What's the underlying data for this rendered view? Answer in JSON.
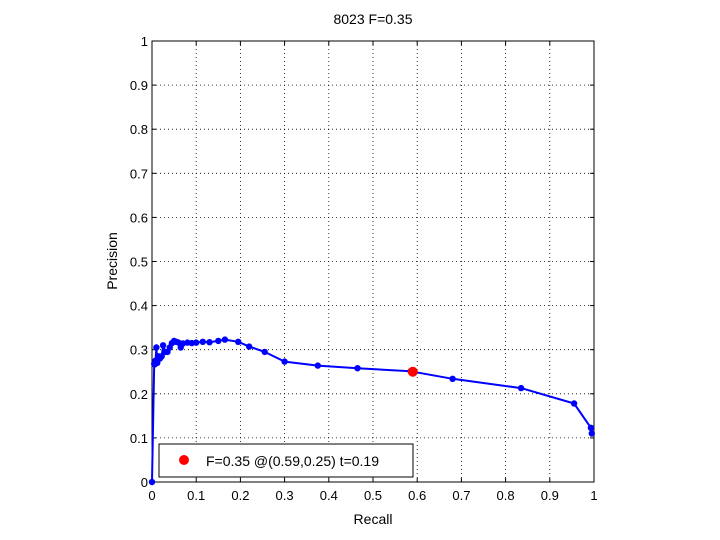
{
  "chart_data": {
    "type": "line",
    "title": "8023 F=0.35",
    "xlabel": "Recall",
    "ylabel": "Precision",
    "xlim": [
      0,
      1
    ],
    "ylim": [
      0,
      1
    ],
    "grid": true,
    "x_ticks": [
      0,
      0.1,
      0.2,
      0.3,
      0.4,
      0.5,
      0.6,
      0.7,
      0.8,
      0.9,
      1
    ],
    "y_ticks": [
      0,
      0.1,
      0.2,
      0.3,
      0.4,
      0.5,
      0.6,
      0.7,
      0.8,
      0.9,
      1
    ],
    "x_tick_labels": [
      "0",
      "0.1",
      "0.2",
      "0.3",
      "0.4",
      "0.5",
      "0.6",
      "0.7",
      "0.8",
      "0.9",
      "1"
    ],
    "y_tick_labels": [
      "0",
      "0.1",
      "0.2",
      "0.3",
      "0.4",
      "0.5",
      "0.6",
      "0.7",
      "0.8",
      "0.9",
      "1"
    ],
    "legend_position": "bottom-left",
    "series": [
      {
        "color": "#0000ff",
        "x": [
          0.0,
          0.005,
          0.006,
          0.008,
          0.01,
          0.012,
          0.015,
          0.018,
          0.022,
          0.025,
          0.03,
          0.035,
          0.04,
          0.045,
          0.05,
          0.055,
          0.06,
          0.065,
          0.07,
          0.08,
          0.09,
          0.1,
          0.115,
          0.13,
          0.15,
          0.165,
          0.195,
          0.22,
          0.255,
          0.3,
          0.375,
          0.465,
          0.585,
          0.68,
          0.835,
          0.955,
          0.993,
          0.995
        ],
        "y": [
          0.0,
          0.268,
          0.267,
          0.275,
          0.305,
          0.27,
          0.285,
          0.28,
          0.285,
          0.31,
          0.295,
          0.295,
          0.305,
          0.315,
          0.32,
          0.318,
          0.316,
          0.305,
          0.314,
          0.316,
          0.315,
          0.316,
          0.318,
          0.317,
          0.32,
          0.323,
          0.318,
          0.307,
          0.295,
          0.273,
          0.264,
          0.258,
          0.251,
          0.234,
          0.213,
          0.178,
          0.123,
          0.11
        ]
      }
    ],
    "highlight_point": {
      "x": 0.59,
      "y": 0.25,
      "color": "#ff0000"
    },
    "legend": {
      "entry": "F=0.35 @(0.59,0.25) t=0.19",
      "marker_color": "#ff0000"
    }
  }
}
